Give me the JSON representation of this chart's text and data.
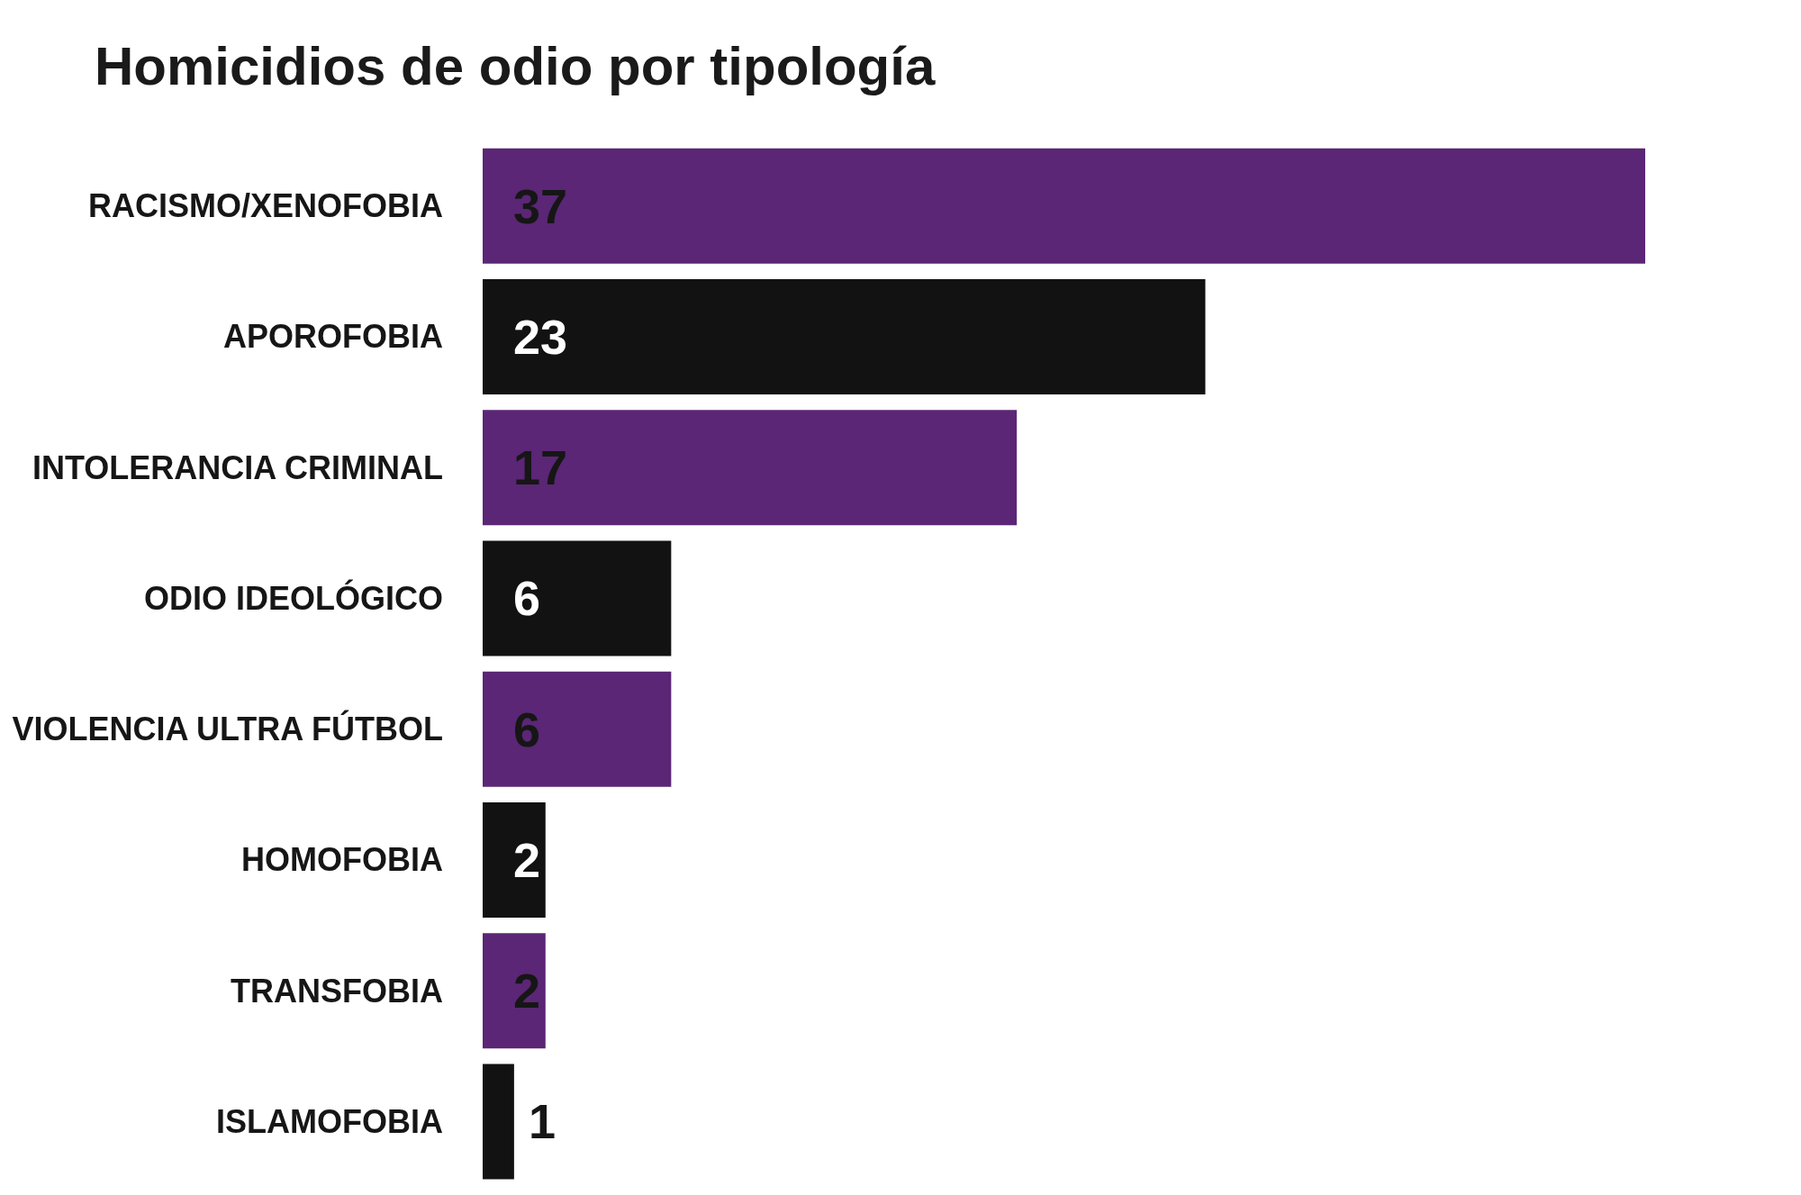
{
  "chart_data": {
    "type": "bar",
    "orientation": "horizontal",
    "title": "Homicidios de odio por tipología",
    "categories": [
      "RACISMO/XENOFOBIA",
      "APOROFOBIA",
      "INTOLERANCIA CRIMINAL",
      "ODIO IDEOLÓGICO",
      "VIOLENCIA ULTRA FÚTBOL",
      "HOMOFOBIA",
      "TRANSFOBIA",
      "ISLAMOFOBIA"
    ],
    "values": [
      37,
      23,
      17,
      6,
      6,
      2,
      2,
      1
    ],
    "colors": [
      "#5b2675",
      "#121212",
      "#5b2675",
      "#121212",
      "#5b2675",
      "#121212",
      "#5b2675",
      "#121212"
    ],
    "data_labels": true,
    "tick_labels": "y"
  }
}
